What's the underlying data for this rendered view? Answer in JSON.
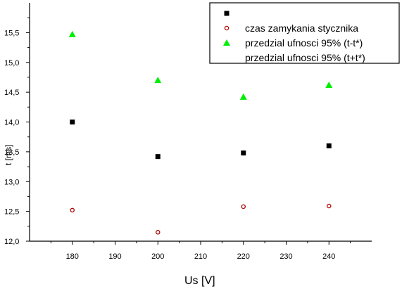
{
  "chart_data": {
    "type": "scatter",
    "xlabel": "Us [V]",
    "ylabel": "t [ms]",
    "xlim": [
      170,
      250
    ],
    "ylim": [
      12.0,
      16.0
    ],
    "x_ticks": [
      "180",
      "190",
      "200",
      "210",
      "220",
      "230",
      "240"
    ],
    "y_ticks": [
      "12,0",
      "12,5",
      "13,0",
      "13,5",
      "14,0",
      "14,5",
      "15,0",
      "15,5"
    ],
    "grid": false,
    "legend_position": "top-right",
    "legend": [
      {
        "label": "",
        "marker": "square",
        "color": "#000000"
      },
      {
        "label": "czas zamykania stycznika",
        "marker": "circle-open",
        "color": "#b00000"
      },
      {
        "label": "przedzial ufnosci 95% (t-t*)",
        "marker": "triangle",
        "color": "#00ee00"
      },
      {
        "label": "przedzial ufnosci 95% (t+t*)",
        "marker": "none",
        "color": "#000000"
      }
    ],
    "series": [
      {
        "marker": "square",
        "color": "#000000",
        "x": [
          180,
          200,
          220,
          240
        ],
        "y": [
          14.0,
          13.42,
          13.48,
          13.6
        ]
      },
      {
        "marker": "circle-open",
        "color": "#b00000",
        "x": [
          180,
          200,
          220,
          240
        ],
        "y": [
          12.52,
          12.15,
          12.58,
          12.59
        ]
      },
      {
        "marker": "triangle",
        "color": "#00ee00",
        "x": [
          180,
          200,
          220,
          240
        ],
        "y": [
          15.47,
          14.7,
          14.42,
          14.62
        ]
      }
    ]
  }
}
